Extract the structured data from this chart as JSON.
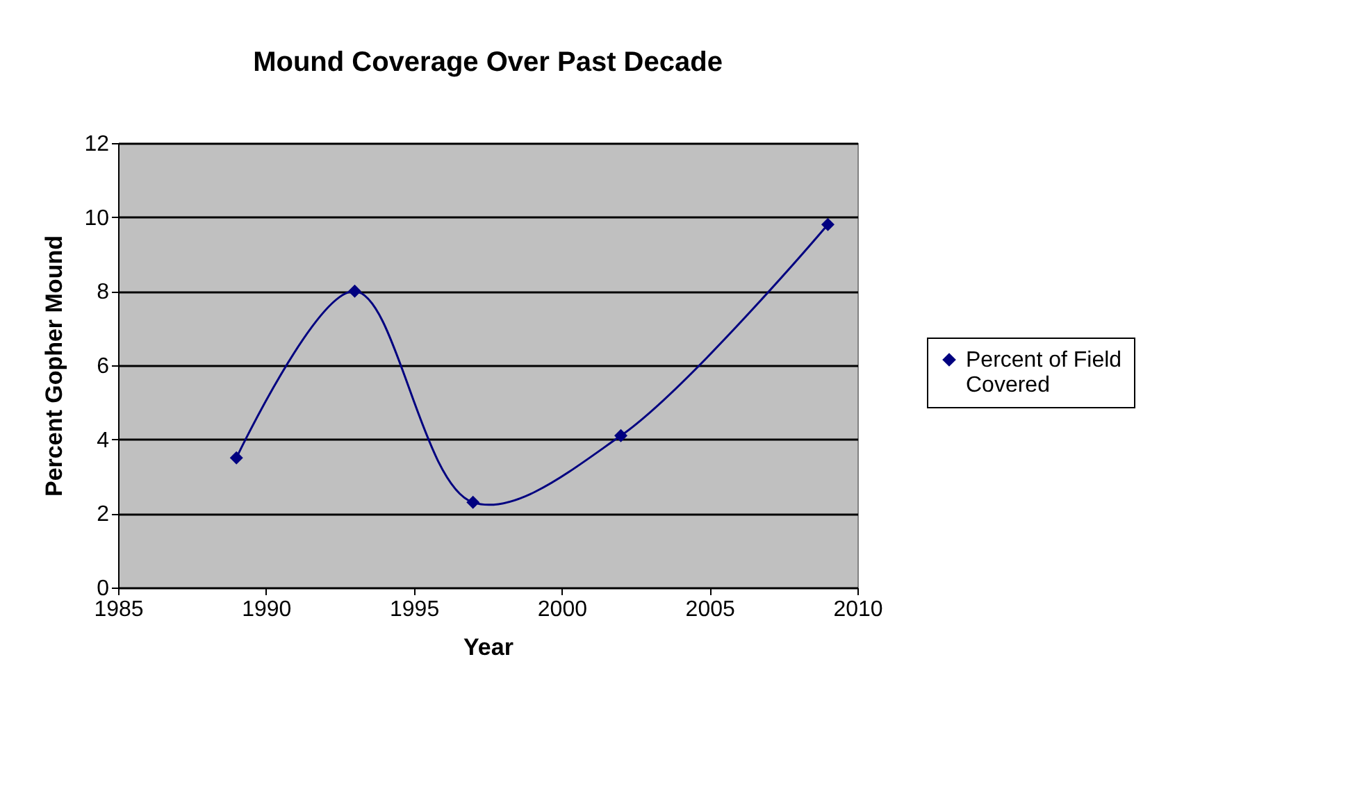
{
  "chart_data": {
    "type": "line",
    "title": "Mound Coverage Over Past Decade",
    "xlabel": "Year",
    "ylabel": "Percent Gopher Mound",
    "x": [
      1989,
      1993,
      1997,
      2002,
      2009
    ],
    "series": [
      {
        "name": "Percent of Field Covered",
        "color": "#000080",
        "values": [
          3.5,
          8.0,
          2.3,
          4.1,
          9.8
        ]
      }
    ],
    "xlim": [
      1985,
      2010
    ],
    "xticks": [
      1985,
      1990,
      1995,
      2000,
      2005,
      2010
    ],
    "ylim": [
      0,
      12
    ],
    "yticks": [
      0,
      2,
      4,
      6,
      8,
      10,
      12
    ],
    "grid": "y",
    "legend": "right",
    "marker": "diamond",
    "line_style": "solid"
  }
}
